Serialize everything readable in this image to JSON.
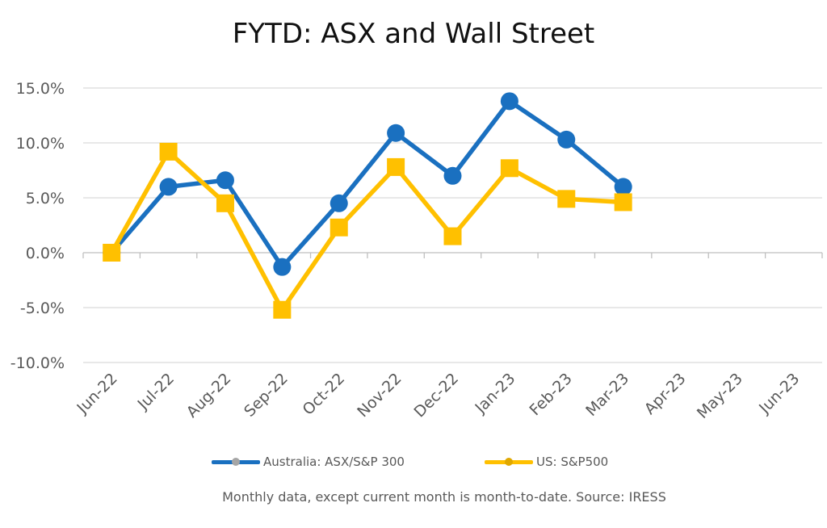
{
  "chart_data": {
    "type": "line",
    "title": "FYTD: ASX and Wall Street",
    "categories": [
      "Jun-22",
      "Jul-22",
      "Aug-22",
      "Sep-22",
      "Oct-22",
      "Nov-22",
      "Dec-22",
      "Jan-23",
      "Feb-23",
      "Mar-23",
      "Apr-23",
      "May-23",
      "Jun-23"
    ],
    "yticks": [
      "15.0%",
      "10.0%",
      "5.0%",
      "0.0%",
      "-5.0%",
      "-10.0%"
    ],
    "ylim": [
      -10,
      15
    ],
    "grid": true,
    "legend_position": "bottom",
    "series": [
      {
        "name": "Australia: ASX/S&P 300",
        "color": "#1a70c0",
        "marker": "circle",
        "values": [
          0.0,
          6.0,
          6.6,
          -1.3,
          4.5,
          10.9,
          7.0,
          13.8,
          10.3,
          6.0,
          null,
          null,
          null
        ]
      },
      {
        "name": "US: S&P500",
        "color": "#ffc000",
        "marker": "square",
        "values": [
          0.0,
          9.2,
          4.5,
          -5.2,
          2.3,
          7.8,
          1.5,
          7.7,
          4.9,
          4.6,
          null,
          null,
          null
        ]
      }
    ]
  },
  "footnote": "Monthly data, except current month is month-to-date.  Source: IRESS"
}
